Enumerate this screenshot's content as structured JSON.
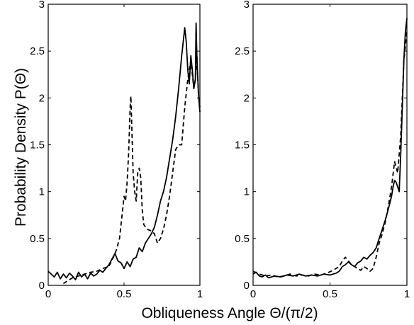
{
  "chart_data": [
    {
      "type": "line",
      "panel": "left",
      "xlim": [
        0,
        1
      ],
      "ylim": [
        0,
        3
      ],
      "xticks": [
        0,
        0.5,
        1
      ],
      "yticks": [
        0,
        0.5,
        1,
        1.5,
        2,
        2.5,
        3
      ],
      "xtick_labels": [
        "0",
        "0.5",
        "1"
      ],
      "ytick_labels": [
        "0",
        "0.5",
        "1",
        "1.5",
        "2",
        "2.5",
        "3"
      ],
      "ylabel": "Probability Density P(Θ)",
      "grid": false,
      "series": [
        {
          "style": "solid",
          "x": [
            0.0,
            0.02,
            0.04,
            0.06,
            0.08,
            0.1,
            0.12,
            0.14,
            0.16,
            0.18,
            0.2,
            0.22,
            0.24,
            0.26,
            0.28,
            0.3,
            0.32,
            0.34,
            0.36,
            0.38,
            0.4,
            0.42,
            0.44,
            0.45,
            0.46,
            0.48,
            0.5,
            0.52,
            0.54,
            0.56,
            0.58,
            0.6,
            0.62,
            0.64,
            0.66,
            0.68,
            0.7,
            0.72,
            0.74,
            0.76,
            0.78,
            0.8,
            0.82,
            0.84,
            0.86,
            0.88,
            0.89,
            0.9,
            0.91,
            0.92,
            0.93,
            0.94,
            0.95,
            0.96,
            0.97,
            0.975,
            0.98,
            0.99,
            1.0
          ],
          "y": [
            0.15,
            0.12,
            0.09,
            0.14,
            0.07,
            0.12,
            0.08,
            0.13,
            0.1,
            0.06,
            0.14,
            0.09,
            0.12,
            0.07,
            0.13,
            0.1,
            0.12,
            0.16,
            0.14,
            0.18,
            0.22,
            0.28,
            0.34,
            0.3,
            0.26,
            0.24,
            0.18,
            0.25,
            0.2,
            0.28,
            0.3,
            0.4,
            0.36,
            0.45,
            0.5,
            0.55,
            0.62,
            0.75,
            0.9,
            1.0,
            1.15,
            1.35,
            1.55,
            1.8,
            2.1,
            2.45,
            2.6,
            2.75,
            2.6,
            2.3,
            2.15,
            2.45,
            2.3,
            2.1,
            2.2,
            2.8,
            2.45,
            2.05,
            1.85
          ]
        },
        {
          "style": "dashed",
          "x": [
            0.1,
            0.13,
            0.16,
            0.2,
            0.24,
            0.28,
            0.32,
            0.36,
            0.4,
            0.43,
            0.45,
            0.47,
            0.49,
            0.5,
            0.51,
            0.52,
            0.53,
            0.54,
            0.545,
            0.55,
            0.56,
            0.57,
            0.58,
            0.59,
            0.6,
            0.61,
            0.62,
            0.63,
            0.65,
            0.68,
            0.7,
            0.72,
            0.74,
            0.76,
            0.78,
            0.8,
            0.82,
            0.84,
            0.86,
            0.88,
            0.9,
            0.92,
            0.94,
            0.96,
            0.97,
            0.98,
            0.99,
            1.0
          ],
          "y": [
            0.02,
            0.05,
            0.08,
            0.1,
            0.12,
            0.14,
            0.15,
            0.18,
            0.2,
            0.3,
            0.38,
            0.5,
            0.8,
            0.95,
            0.9,
            1.1,
            1.4,
            1.9,
            2.02,
            1.75,
            1.2,
            1.0,
            0.9,
            1.2,
            1.25,
            1.15,
            0.8,
            0.65,
            0.6,
            0.58,
            0.55,
            0.45,
            0.5,
            0.6,
            0.75,
            0.95,
            1.2,
            1.45,
            1.5,
            1.5,
            1.9,
            2.2,
            2.4,
            2.1,
            2.2,
            2.45,
            2.05,
            1.9
          ]
        }
      ]
    },
    {
      "type": "line",
      "panel": "right",
      "xlim": [
        0,
        1
      ],
      "ylim": [
        0,
        3
      ],
      "xticks": [
        0,
        0.5,
        1
      ],
      "yticks": [
        0,
        0.5,
        1,
        1.5,
        2,
        2.5,
        3
      ],
      "xtick_labels": [
        "0",
        "0.5",
        "1"
      ],
      "ytick_labels": [
        "0",
        "0.5",
        "1",
        "1.5",
        "2",
        "2.5",
        "3"
      ],
      "grid": false,
      "series": [
        {
          "style": "solid",
          "x": [
            0.0,
            0.02,
            0.04,
            0.06,
            0.08,
            0.1,
            0.14,
            0.18,
            0.22,
            0.26,
            0.3,
            0.34,
            0.38,
            0.42,
            0.46,
            0.5,
            0.54,
            0.56,
            0.58,
            0.6,
            0.62,
            0.64,
            0.66,
            0.68,
            0.7,
            0.72,
            0.74,
            0.76,
            0.78,
            0.8,
            0.82,
            0.84,
            0.86,
            0.88,
            0.9,
            0.91,
            0.92,
            0.93,
            0.94,
            0.95,
            0.96,
            0.97,
            0.98,
            0.99,
            1.0
          ],
          "y": [
            0.12,
            0.14,
            0.1,
            0.09,
            0.11,
            0.08,
            0.1,
            0.09,
            0.11,
            0.1,
            0.12,
            0.1,
            0.11,
            0.1,
            0.12,
            0.11,
            0.13,
            0.15,
            0.2,
            0.22,
            0.25,
            0.22,
            0.2,
            0.24,
            0.26,
            0.3,
            0.28,
            0.32,
            0.35,
            0.4,
            0.5,
            0.6,
            0.7,
            0.82,
            0.95,
            1.05,
            1.12,
            1.1,
            1.05,
            1.0,
            1.4,
            1.9,
            2.4,
            2.7,
            2.85
          ]
        },
        {
          "style": "dashed",
          "x": [
            0.0,
            0.04,
            0.08,
            0.12,
            0.16,
            0.2,
            0.24,
            0.28,
            0.32,
            0.36,
            0.4,
            0.44,
            0.48,
            0.52,
            0.56,
            0.58,
            0.6,
            0.62,
            0.64,
            0.66,
            0.68,
            0.7,
            0.72,
            0.74,
            0.76,
            0.78,
            0.8,
            0.82,
            0.84,
            0.86,
            0.88,
            0.9,
            0.92,
            0.94,
            0.96,
            0.97,
            0.98,
            0.99,
            1.0
          ],
          "y": [
            0.15,
            0.12,
            0.1,
            0.11,
            0.09,
            0.1,
            0.12,
            0.1,
            0.11,
            0.1,
            0.12,
            0.11,
            0.13,
            0.16,
            0.2,
            0.26,
            0.3,
            0.26,
            0.22,
            0.2,
            0.18,
            0.16,
            0.2,
            0.18,
            0.15,
            0.18,
            0.3,
            0.45,
            0.55,
            0.68,
            0.85,
            1.05,
            1.32,
            1.2,
            1.6,
            2.0,
            2.4,
            2.55,
            2.72
          ]
        }
      ]
    }
  ],
  "figure": {
    "xlabel": "Obliqueness Angle Θ/(π/2)"
  }
}
